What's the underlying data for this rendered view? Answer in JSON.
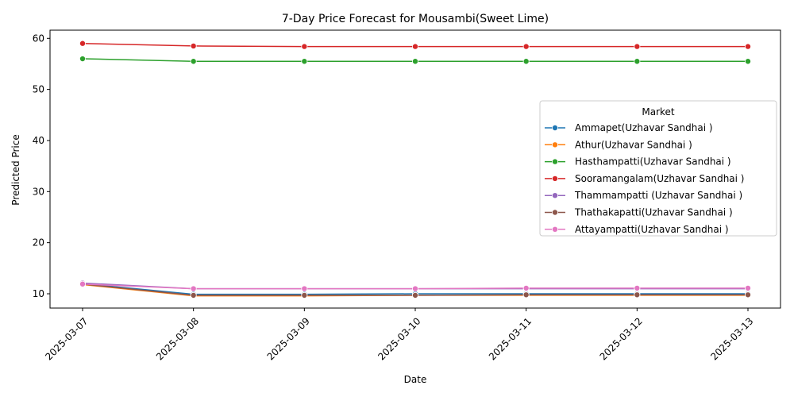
{
  "chart_data": {
    "type": "line",
    "title": "7-Day Price Forecast for Mousambi(Sweet Lime)",
    "xlabel": "Date",
    "ylabel": "Predicted Price",
    "x": [
      "2025-03-07",
      "2025-03-08",
      "2025-03-09",
      "2025-03-10",
      "2025-03-11",
      "2025-03-12",
      "2025-03-13"
    ],
    "yticks": [
      10,
      20,
      30,
      40,
      50,
      60
    ],
    "ylim": [
      7.2,
      61.6
    ],
    "grid": false,
    "legend": {
      "title": "Market",
      "placement": "center-right"
    },
    "series": [
      {
        "name": "Ammapet(Uzhavar Sandhai )",
        "color": "#1f77b4",
        "values": [
          12.0,
          9.9,
          9.9,
          10.0,
          10.0,
          10.0,
          10.0
        ]
      },
      {
        "name": "Athur(Uzhavar Sandhai )",
        "color": "#ff7f0e",
        "values": [
          11.8,
          9.6,
          9.6,
          9.7,
          9.7,
          9.7,
          9.7
        ]
      },
      {
        "name": "Hasthampatti(Uzhavar Sandhai )",
        "color": "#2ca02c",
        "values": [
          56.0,
          55.5,
          55.5,
          55.5,
          55.5,
          55.5,
          55.5
        ]
      },
      {
        "name": "Sooramangalam(Uzhavar Sandhai )",
        "color": "#d62728",
        "values": [
          59.0,
          58.5,
          58.4,
          58.4,
          58.4,
          58.4,
          58.4
        ]
      },
      {
        "name": "Thammampatti (Uzhavar Sandhai )",
        "color": "#9467bd",
        "values": [
          12.1,
          11.0,
          11.0,
          11.0,
          11.0,
          11.0,
          11.0
        ]
      },
      {
        "name": "Thathakapatti(Uzhavar Sandhai )",
        "color": "#8c564b",
        "values": [
          11.9,
          9.7,
          9.7,
          9.7,
          9.8,
          9.8,
          9.8
        ]
      },
      {
        "name": "Attayampatti(Uzhavar Sandhai )",
        "color": "#e377c2",
        "values": [
          11.9,
          11.0,
          11.0,
          11.0,
          11.1,
          11.1,
          11.1
        ]
      }
    ]
  }
}
